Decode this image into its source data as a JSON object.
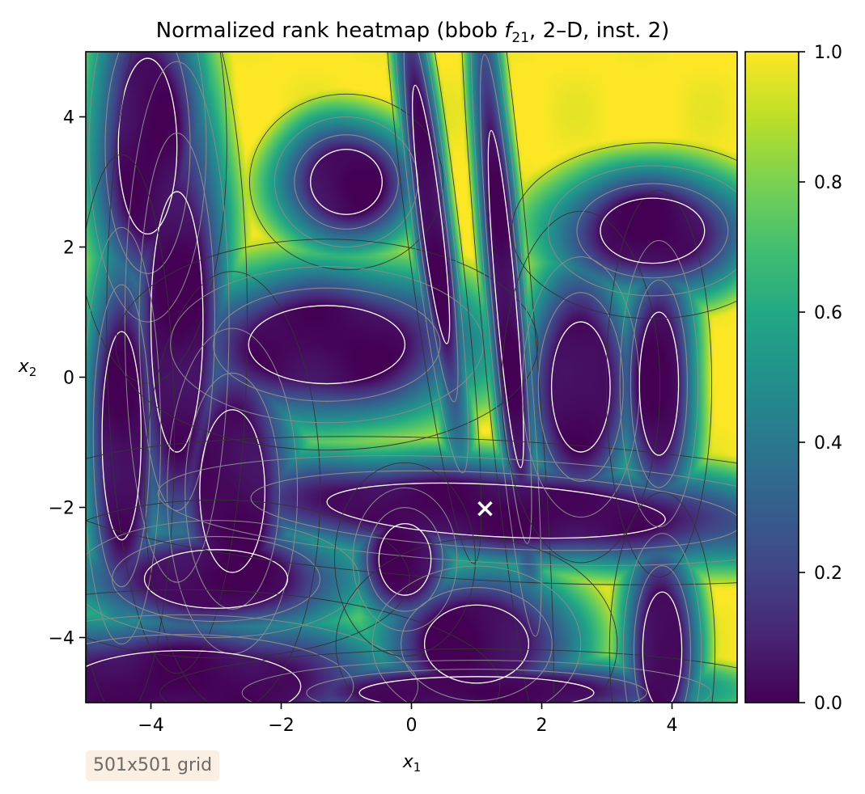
{
  "chart_data": {
    "type": "heatmap",
    "title": "Normalized rank heatmap (bbob ",
    "title_func": "f",
    "title_sub": "21",
    "title_end": ", 2–D, inst. 2)",
    "xlabel": "x",
    "xlabel_sub": "1",
    "ylabel": "x",
    "ylabel_sub": "2",
    "xlim": [
      -5,
      5
    ],
    "ylim": [
      -5,
      5
    ],
    "xticks": [
      -4,
      -2,
      0,
      2,
      4
    ],
    "yticks": [
      -4,
      -2,
      0,
      2,
      4
    ],
    "xtick_labels": [
      "−4",
      "−2",
      "0",
      "2",
      "4"
    ],
    "ytick_labels": [
      "−4",
      "−2",
      "0",
      "2",
      "4"
    ],
    "colormap": "viridis",
    "colorbar": {
      "range": [
        0,
        1
      ],
      "ticks": [
        0.0,
        0.2,
        0.4,
        0.6,
        0.8,
        1.0
      ],
      "tick_labels": [
        "0.0",
        "0.2",
        "0.4",
        "0.6",
        "0.8",
        "1.0"
      ]
    },
    "optimum_marker": {
      "x": 1.13,
      "y": -2.02,
      "symbol": "×",
      "color": "#ffffff"
    },
    "basins": [
      {
        "x": -4.05,
        "y": 3.55,
        "rx": 0.45,
        "ry": 1.35,
        "a": 0
      },
      {
        "x": -3.6,
        "y": 0.85,
        "rx": 0.4,
        "ry": 2.0,
        "a": 0
      },
      {
        "x": -4.45,
        "y": -0.9,
        "rx": 0.3,
        "ry": 1.6,
        "a": 0
      },
      {
        "x": -2.75,
        "y": -1.75,
        "rx": 0.5,
        "ry": 1.25,
        "a": 0
      },
      {
        "x": -3.0,
        "y": -3.1,
        "rx": 1.1,
        "ry": 0.45,
        "a": 0
      },
      {
        "x": -3.5,
        "y": -4.75,
        "rx": 1.8,
        "ry": 0.55,
        "a": 0
      },
      {
        "x": -1.0,
        "y": 3.0,
        "rx": 0.55,
        "ry": 0.5,
        "a": 0
      },
      {
        "x": -1.3,
        "y": 0.5,
        "rx": 1.2,
        "ry": 0.6,
        "a": 0
      },
      {
        "x": 0.3,
        "y": 2.5,
        "rx": 0.15,
        "ry": 2.0,
        "a": 7
      },
      {
        "x": 1.45,
        "y": 1.2,
        "rx": 0.15,
        "ry": 2.6,
        "a": 5
      },
      {
        "x": 1.3,
        "y": -2.05,
        "rx": 2.6,
        "ry": 0.4,
        "a": -3
      },
      {
        "x": -0.1,
        "y": -2.8,
        "rx": 0.4,
        "ry": 0.55,
        "a": 0
      },
      {
        "x": 1.0,
        "y": -4.1,
        "rx": 0.8,
        "ry": 0.6,
        "a": 0
      },
      {
        "x": 1.0,
        "y": -4.85,
        "rx": 1.8,
        "ry": 0.25,
        "a": 0
      },
      {
        "x": 2.6,
        "y": -0.15,
        "rx": 0.45,
        "ry": 1.0,
        "a": 0
      },
      {
        "x": 3.8,
        "y": -0.1,
        "rx": 0.3,
        "ry": 1.1,
        "a": 0
      },
      {
        "x": 3.7,
        "y": 2.25,
        "rx": 0.8,
        "ry": 0.5,
        "a": 0
      },
      {
        "x": 3.85,
        "y": -4.2,
        "rx": 0.3,
        "ry": 0.9,
        "a": 0
      }
    ]
  },
  "grid_badge": "501x501 grid"
}
